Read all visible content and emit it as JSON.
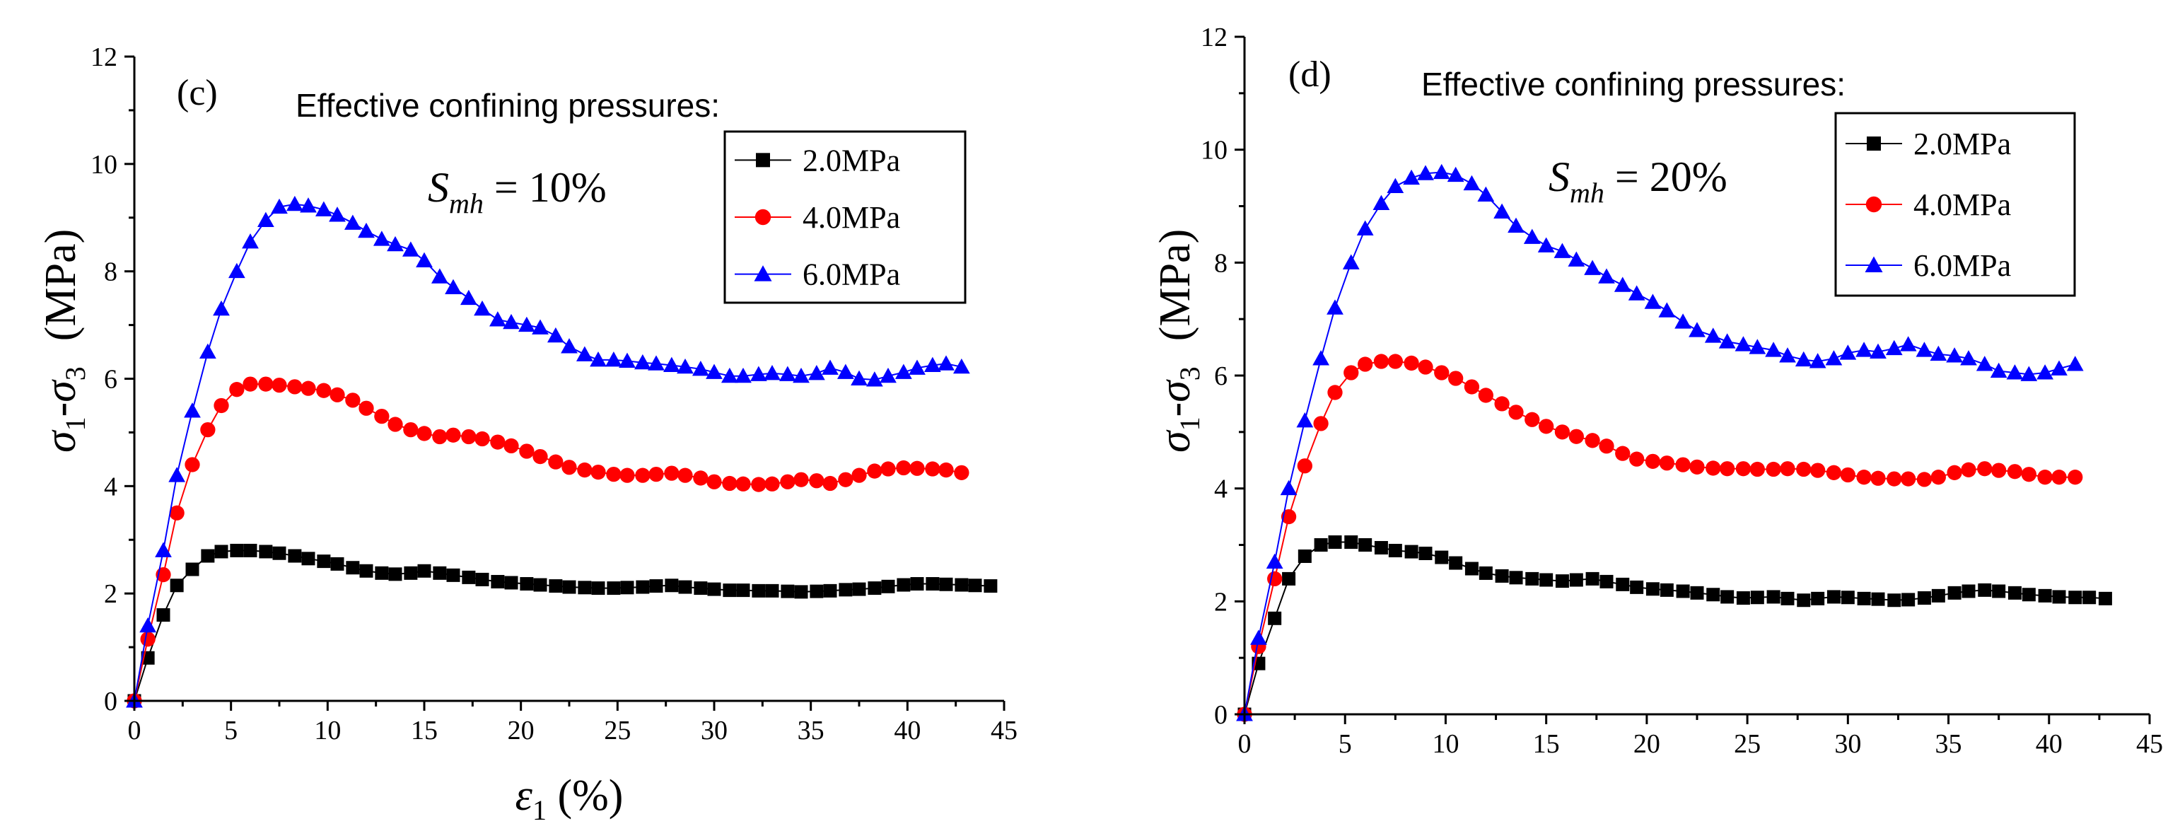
{
  "chart_data": [
    {
      "type": "line",
      "panel_label": "(c)",
      "legend_title": "Effective confining pressures:",
      "annotation": {
        "symbol": "S",
        "subscript": "mh",
        "rest": " = 10%"
      },
      "xlabel": {
        "symbol": "ε",
        "subscript": "1",
        "rest": "  (%)"
      },
      "ylabel": {
        "s1": "σ",
        "sub1": "1",
        "dash": "-",
        "s3": "σ",
        "sub3": "3",
        "unit": "(MPa)"
      },
      "xlim": [
        0,
        45
      ],
      "ylim": [
        0,
        12
      ],
      "xticks": [
        "0",
        "5",
        "10",
        "15",
        "20",
        "25",
        "30",
        "35",
        "40",
        "45"
      ],
      "yticks": [
        "0",
        "2",
        "4",
        "6",
        "8",
        "10",
        "12"
      ],
      "series": [
        {
          "name": "2.0MPa",
          "color": "#000000",
          "marker": "square",
          "x": [
            0,
            0.7,
            1.5,
            2.2,
            3,
            3.8,
            4.5,
            5.3,
            6,
            6.8,
            7.5,
            8.3,
            9,
            9.8,
            10.5,
            11.3,
            12,
            12.8,
            13.5,
            14.3,
            15,
            15.8,
            16.5,
            17.3,
            18,
            18.8,
            19.5,
            20.3,
            21,
            21.8,
            22.5,
            23.3,
            24,
            24.8,
            25.5,
            26.3,
            27,
            27.8,
            28.5,
            29.3,
            30,
            30.8,
            31.5,
            32.3,
            33,
            33.8,
            34.5,
            35.3,
            36,
            36.8,
            37.5,
            38.3,
            39,
            39.8,
            40.5,
            41.3,
            42,
            42.8,
            43.5,
            44.3
          ],
          "y": [
            0,
            0.8,
            1.6,
            2.15,
            2.45,
            2.7,
            2.78,
            2.8,
            2.8,
            2.78,
            2.75,
            2.7,
            2.65,
            2.6,
            2.55,
            2.48,
            2.42,
            2.38,
            2.36,
            2.38,
            2.42,
            2.38,
            2.34,
            2.3,
            2.26,
            2.22,
            2.2,
            2.18,
            2.16,
            2.14,
            2.12,
            2.11,
            2.1,
            2.1,
            2.11,
            2.12,
            2.14,
            2.15,
            2.12,
            2.1,
            2.08,
            2.06,
            2.06,
            2.05,
            2.05,
            2.04,
            2.03,
            2.04,
            2.05,
            2.07,
            2.08,
            2.1,
            2.13,
            2.16,
            2.18,
            2.18,
            2.17,
            2.16,
            2.15,
            2.14
          ]
        },
        {
          "name": "4.0MPa",
          "color": "#ff0000",
          "marker": "circle",
          "x": [
            0,
            0.7,
            1.5,
            2.2,
            3,
            3.8,
            4.5,
            5.3,
            6,
            6.8,
            7.5,
            8.3,
            9,
            9.8,
            10.5,
            11.3,
            12,
            12.8,
            13.5,
            14.3,
            15,
            15.8,
            16.5,
            17.3,
            18,
            18.8,
            19.5,
            20.3,
            21,
            21.8,
            22.5,
            23.3,
            24,
            24.8,
            25.5,
            26.3,
            27,
            27.8,
            28.5,
            29.3,
            30,
            30.8,
            31.5,
            32.3,
            33,
            33.8,
            34.5,
            35.3,
            36,
            36.8,
            37.5,
            38.3,
            39,
            39.8,
            40.5,
            41.3,
            42,
            42.8
          ],
          "y": [
            0,
            1.15,
            2.35,
            3.5,
            4.4,
            5.05,
            5.5,
            5.8,
            5.9,
            5.9,
            5.88,
            5.85,
            5.82,
            5.78,
            5.7,
            5.6,
            5.45,
            5.3,
            5.15,
            5.05,
            4.98,
            4.92,
            4.95,
            4.92,
            4.88,
            4.82,
            4.75,
            4.65,
            4.55,
            4.45,
            4.35,
            4.3,
            4.26,
            4.22,
            4.2,
            4.2,
            4.22,
            4.24,
            4.2,
            4.15,
            4.08,
            4.05,
            4.04,
            4.03,
            4.04,
            4.08,
            4.12,
            4.1,
            4.05,
            4.12,
            4.2,
            4.28,
            4.32,
            4.34,
            4.33,
            4.32,
            4.3,
            4.25
          ]
        },
        {
          "name": "6.0MPa",
          "color": "#0000ff",
          "marker": "triangle",
          "x": [
            0,
            0.7,
            1.5,
            2.2,
            3,
            3.8,
            4.5,
            5.3,
            6,
            6.8,
            7.5,
            8.3,
            9,
            9.8,
            10.5,
            11.3,
            12,
            12.8,
            13.5,
            14.3,
            15,
            15.8,
            16.5,
            17.3,
            18,
            18.8,
            19.5,
            20.3,
            21,
            21.8,
            22.5,
            23.3,
            24,
            24.8,
            25.5,
            26.3,
            27,
            27.8,
            28.5,
            29.3,
            30,
            30.8,
            31.5,
            32.3,
            33,
            33.8,
            34.5,
            35.3,
            36,
            36.8,
            37.5,
            38.3,
            39,
            39.8,
            40.5,
            41.3,
            42,
            42.8
          ],
          "y": [
            0,
            1.4,
            2.8,
            4.2,
            5.4,
            6.5,
            7.3,
            8.0,
            8.55,
            8.95,
            9.2,
            9.25,
            9.22,
            9.15,
            9.05,
            8.9,
            8.75,
            8.6,
            8.5,
            8.4,
            8.2,
            7.9,
            7.7,
            7.5,
            7.3,
            7.1,
            7.05,
            7.0,
            6.95,
            6.8,
            6.6,
            6.45,
            6.35,
            6.35,
            6.33,
            6.3,
            6.28,
            6.25,
            6.22,
            6.18,
            6.12,
            6.05,
            6.05,
            6.08,
            6.1,
            6.08,
            6.05,
            6.1,
            6.2,
            6.12,
            6.0,
            5.98,
            6.05,
            6.12,
            6.2,
            6.25,
            6.28,
            6.22
          ]
        }
      ]
    },
    {
      "type": "line",
      "panel_label": "(d)",
      "legend_title": "Effective confining pressures:",
      "annotation": {
        "symbol": "S",
        "subscript": "mh",
        "rest": " = 20%"
      },
      "ylabel": {
        "s1": "σ",
        "sub1": "1",
        "dash": "-",
        "s3": "σ",
        "sub3": "3",
        "unit": "(MPa)"
      },
      "xlim": [
        0,
        45
      ],
      "ylim": [
        0,
        12
      ],
      "xticks": [
        "0",
        "5",
        "10",
        "15",
        "20",
        "25",
        "30",
        "35",
        "40",
        "45"
      ],
      "yticks": [
        "0",
        "2",
        "4",
        "6",
        "8",
        "10",
        "12"
      ],
      "series": [
        {
          "name": "2.0MPa",
          "color": "#000000",
          "marker": "square",
          "x": [
            0,
            0.7,
            1.5,
            2.2,
            3,
            3.8,
            4.5,
            5.3,
            6,
            6.8,
            7.5,
            8.3,
            9,
            9.8,
            10.5,
            11.3,
            12,
            12.8,
            13.5,
            14.3,
            15,
            15.8,
            16.5,
            17.3,
            18,
            18.8,
            19.5,
            20.3,
            21,
            21.8,
            22.5,
            23.3,
            24,
            24.8,
            25.5,
            26.3,
            27,
            27.8,
            28.5,
            29.3,
            30,
            30.8,
            31.5,
            32.3,
            33,
            33.8,
            34.5,
            35.3,
            36,
            36.8,
            37.5,
            38.3,
            39,
            39.8,
            40.5,
            41.3,
            42,
            42.8
          ],
          "y": [
            0,
            0.9,
            1.7,
            2.4,
            2.8,
            3.0,
            3.05,
            3.05,
            3.0,
            2.95,
            2.9,
            2.88,
            2.85,
            2.78,
            2.68,
            2.58,
            2.5,
            2.45,
            2.42,
            2.4,
            2.38,
            2.36,
            2.38,
            2.4,
            2.35,
            2.3,
            2.25,
            2.22,
            2.2,
            2.18,
            2.15,
            2.12,
            2.08,
            2.06,
            2.07,
            2.08,
            2.05,
            2.02,
            2.05,
            2.08,
            2.07,
            2.05,
            2.04,
            2.02,
            2.03,
            2.06,
            2.1,
            2.15,
            2.18,
            2.2,
            2.18,
            2.15,
            2.12,
            2.1,
            2.08,
            2.07,
            2.07,
            2.05
          ]
        },
        {
          "name": "4.0MPa",
          "color": "#ff0000",
          "marker": "circle",
          "x": [
            0,
            0.7,
            1.5,
            2.2,
            3,
            3.8,
            4.5,
            5.3,
            6,
            6.8,
            7.5,
            8.3,
            9,
            9.8,
            10.5,
            11.3,
            12,
            12.8,
            13.5,
            14.3,
            15,
            15.8,
            16.5,
            17.3,
            18,
            18.8,
            19.5,
            20.3,
            21,
            21.8,
            22.5,
            23.3,
            24,
            24.8,
            25.5,
            26.3,
            27,
            27.8,
            28.5,
            29.3,
            30,
            30.8,
            31.5,
            32.3,
            33,
            33.8,
            34.5,
            35.3,
            36,
            36.8,
            37.5,
            38.3,
            39,
            39.8,
            40.5,
            41.3
          ],
          "y": [
            0,
            1.2,
            2.4,
            3.5,
            4.4,
            5.15,
            5.7,
            6.05,
            6.2,
            6.25,
            6.25,
            6.22,
            6.15,
            6.05,
            5.95,
            5.8,
            5.65,
            5.5,
            5.35,
            5.22,
            5.1,
            5.0,
            4.92,
            4.85,
            4.75,
            4.62,
            4.52,
            4.48,
            4.45,
            4.42,
            4.38,
            4.36,
            4.35,
            4.35,
            4.34,
            4.34,
            4.35,
            4.34,
            4.32,
            4.28,
            4.24,
            4.2,
            4.18,
            4.17,
            4.17,
            4.16,
            4.2,
            4.28,
            4.33,
            4.35,
            4.32,
            4.3,
            4.25,
            4.2,
            4.2,
            4.2
          ]
        },
        {
          "name": "6.0MPa",
          "color": "#0000ff",
          "marker": "triangle",
          "x": [
            0,
            0.7,
            1.5,
            2.2,
            3,
            3.8,
            4.5,
            5.3,
            6,
            6.8,
            7.5,
            8.3,
            9,
            9.8,
            10.5,
            11.3,
            12,
            12.8,
            13.5,
            14.3,
            15,
            15.8,
            16.5,
            17.3,
            18,
            18.8,
            19.5,
            20.3,
            21,
            21.8,
            22.5,
            23.3,
            24,
            24.8,
            25.5,
            26.3,
            27,
            27.8,
            28.5,
            29.3,
            30,
            30.8,
            31.5,
            32.3,
            33,
            33.8,
            34.5,
            35.3,
            36,
            36.8,
            37.5,
            38.3,
            39,
            39.8,
            40.5,
            41.3
          ],
          "y": [
            0,
            1.35,
            2.7,
            4.0,
            5.2,
            6.3,
            7.2,
            8.0,
            8.6,
            9.05,
            9.35,
            9.5,
            9.58,
            9.6,
            9.55,
            9.4,
            9.2,
            8.9,
            8.65,
            8.45,
            8.3,
            8.2,
            8.05,
            7.9,
            7.75,
            7.6,
            7.45,
            7.3,
            7.15,
            6.95,
            6.8,
            6.7,
            6.6,
            6.55,
            6.5,
            6.45,
            6.35,
            6.28,
            6.25,
            6.3,
            6.4,
            6.45,
            6.42,
            6.48,
            6.55,
            6.45,
            6.38,
            6.35,
            6.3,
            6.2,
            6.08,
            6.05,
            6.02,
            6.05,
            6.12,
            6.2
          ]
        }
      ]
    }
  ]
}
